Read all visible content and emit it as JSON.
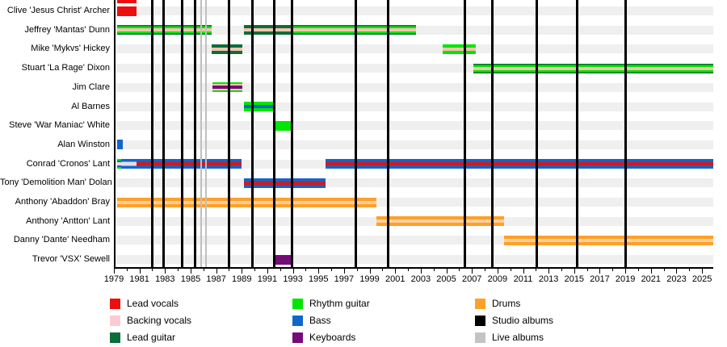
{
  "chart_data": {
    "type": "timeline",
    "x_axis": {
      "start": 1979,
      "end": 2025.75,
      "tick_years": [
        1979,
        1981,
        1983,
        1985,
        1987,
        1989,
        1991,
        1993,
        1995,
        1997,
        1999,
        2001,
        2003,
        2005,
        2007,
        2009,
        2011,
        2013,
        2015,
        2017,
        2019,
        2021,
        2023,
        2025
      ],
      "minor_tick_step": 1,
      "grid": "row-stripes"
    },
    "colors": {
      "red": "#ed0f0f",
      "vocal_red": "#c81d26",
      "pink": "#f5c3ae",
      "pink_legend": "#f9ccd3",
      "pale": "#e8dcea",
      "dark_green": "#0b6e38",
      "bright_green": "#00e600",
      "blue": "#1166cc",
      "purple": "#760c78",
      "orange": "#ffa028",
      "peach": "#ffcf9c",
      "black": "#000000",
      "silver": "#c4c4c4",
      "row_band": "#efefef",
      "live_line": "#bfbfbf"
    },
    "members": [
      {
        "name": "Clive 'Jesus Christ' Archer",
        "bars": [
          {
            "from": 1979.1,
            "to": 1980.65,
            "roles": [
              "Lead vocals"
            ],
            "stripes": [
              [
                "red",
                100
              ]
            ]
          }
        ]
      },
      {
        "name": "Jeffrey 'Mantas' Dunn",
        "bars": [
          {
            "from": 1979.1,
            "to": 1986.5,
            "roles": [
              "Lead guitar",
              "Rhythm guitar",
              "Backing vocals"
            ],
            "stripes": [
              [
                "dark_green",
                14
              ],
              [
                "bright_green",
                20
              ],
              [
                "pink",
                32
              ],
              [
                "bright_green",
                20
              ],
              [
                "dark_green",
                14
              ]
            ]
          },
          {
            "from": 1989.05,
            "to": 1992.85,
            "roles": [
              "Lead guitar",
              "Backing vocals"
            ],
            "stripes": [
              [
                "dark_green",
                35
              ],
              [
                "pink",
                30
              ],
              [
                "dark_green",
                35
              ]
            ]
          },
          {
            "from": 1992.85,
            "to": 2002.5,
            "roles": [
              "Lead guitar",
              "Rhythm guitar",
              "Backing vocals"
            ],
            "stripes": [
              [
                "dark_green",
                14
              ],
              [
                "bright_green",
                20
              ],
              [
                "pink",
                32
              ],
              [
                "bright_green",
                20
              ],
              [
                "dark_green",
                14
              ]
            ]
          }
        ]
      },
      {
        "name": "Mike 'Mykvs' Hickey",
        "bars": [
          {
            "from": 1986.5,
            "to": 1988.95,
            "roles": [
              "Lead guitar",
              "Backing vocals"
            ],
            "stripes": [
              [
                "dark_green",
                35
              ],
              [
                "pink",
                30
              ],
              [
                "dark_green",
                35
              ]
            ]
          },
          {
            "from": 2004.6,
            "to": 2007.2,
            "roles": [
              "Rhythm guitar",
              "Backing vocals"
            ],
            "stripes": [
              [
                "bright_green",
                35
              ],
              [
                "pink",
                30
              ],
              [
                "bright_green",
                35
              ]
            ]
          }
        ]
      },
      {
        "name": "Stuart 'La Rage' Dixon",
        "bars": [
          {
            "from": 2007.0,
            "to": 2025.75,
            "roles": [
              "Lead guitar",
              "Rhythm guitar",
              "Backing vocals"
            ],
            "stripes": [
              [
                "dark_green",
                14
              ],
              [
                "bright_green",
                20
              ],
              [
                "pink",
                32
              ],
              [
                "bright_green",
                20
              ],
              [
                "dark_green",
                14
              ]
            ]
          }
        ]
      },
      {
        "name": "Jim Clare",
        "bars": [
          {
            "from": 1986.55,
            "to": 1988.95,
            "roles": [
              "Rhythm guitar",
              "Backing vocals",
              "Keyboards"
            ],
            "stripes": [
              [
                "bright_green",
                17
              ],
              [
                "pink",
                17
              ],
              [
                "purple",
                32
              ],
              [
                "pink",
                17
              ],
              [
                "bright_green",
                17
              ]
            ]
          }
        ]
      },
      {
        "name": "Al Barnes",
        "bars": [
          {
            "from": 1989.05,
            "to": 1991.4,
            "roles": [
              "Rhythm guitar",
              "Bass"
            ],
            "stripes": [
              [
                "bright_green",
                33
              ],
              [
                "blue",
                34
              ],
              [
                "bright_green",
                33
              ]
            ]
          }
        ]
      },
      {
        "name": "Steve 'War Maniac' White",
        "bars": [
          {
            "from": 1991.5,
            "to": 1992.8,
            "roles": [
              "Rhythm guitar"
            ],
            "stripes": [
              [
                "bright_green",
                100
              ]
            ]
          }
        ]
      },
      {
        "name": "Alan Winston",
        "bars": [
          {
            "from": 1979.1,
            "to": 1979.6,
            "roles": [
              "Bass"
            ],
            "stripes": [
              [
                "blue",
                100
              ]
            ]
          }
        ]
      },
      {
        "name": "Conrad 'Cronos' Lant",
        "bars": [
          {
            "from": 1979.1,
            "to": 1979.45,
            "roles": [
              "Rhythm guitar",
              "Bass",
              "Backing vocals"
            ],
            "stripes": [
              [
                "bright_green",
                15
              ],
              [
                "blue",
                18
              ],
              [
                "pale",
                34
              ],
              [
                "blue",
                18
              ],
              [
                "bright_green",
                15
              ]
            ]
          },
          {
            "from": 1979.45,
            "to": 1980.65,
            "roles": [
              "Bass",
              "Backing vocals"
            ],
            "stripes": [
              [
                "blue",
                30
              ],
              [
                "pale",
                40
              ],
              [
                "blue",
                30
              ]
            ]
          },
          {
            "from": 1980.65,
            "to": 1988.85,
            "roles": [
              "Bass",
              "Lead vocals"
            ],
            "stripes": [
              [
                "blue",
                30
              ],
              [
                "vocal_red",
                40
              ],
              [
                "blue",
                30
              ]
            ]
          },
          {
            "from": 1995.4,
            "to": 2025.75,
            "roles": [
              "Bass",
              "Lead vocals"
            ],
            "stripes": [
              [
                "blue",
                30
              ],
              [
                "vocal_red",
                40
              ],
              [
                "blue",
                30
              ]
            ]
          }
        ]
      },
      {
        "name": "Tony 'Demolition Man' Dolan",
        "bars": [
          {
            "from": 1989.05,
            "to": 1995.4,
            "roles": [
              "Bass",
              "Lead vocals"
            ],
            "stripes": [
              [
                "blue",
                30
              ],
              [
                "vocal_red",
                40
              ],
              [
                "blue",
                30
              ]
            ]
          }
        ]
      },
      {
        "name": "Anthony 'Abaddon' Bray",
        "bars": [
          {
            "from": 1979.1,
            "to": 1999.4,
            "roles": [
              "Drums",
              "Backing vocals"
            ],
            "stripes": [
              [
                "orange",
                32
              ],
              [
                "peach",
                36
              ],
              [
                "orange",
                32
              ]
            ]
          }
        ]
      },
      {
        "name": "Anthony 'Antton' Lant",
        "bars": [
          {
            "from": 1999.4,
            "to": 2009.4,
            "roles": [
              "Drums",
              "Backing vocals"
            ],
            "stripes": [
              [
                "orange",
                32
              ],
              [
                "peach",
                36
              ],
              [
                "orange",
                32
              ]
            ]
          }
        ]
      },
      {
        "name": "Danny 'Dante' Needham",
        "bars": [
          {
            "from": 2009.4,
            "to": 2025.75,
            "roles": [
              "Drums",
              "Backing vocals"
            ],
            "stripes": [
              [
                "orange",
                32
              ],
              [
                "peach",
                36
              ],
              [
                "orange",
                32
              ]
            ]
          }
        ]
      },
      {
        "name": "Trevor 'VSX' Sewell",
        "bars": [
          {
            "from": 1991.4,
            "to": 1992.9,
            "roles": [
              "Keyboards"
            ],
            "stripes": [
              [
                "purple",
                100
              ]
            ]
          }
        ]
      }
    ],
    "events": {
      "studio_albums": [
        1981.9,
        1982.75,
        1984.2,
        1985.25,
        1987.85,
        1989.7,
        1991.4,
        1992.8,
        1997.8,
        2000.3,
        2006.3,
        2008.5,
        2011.95,
        2015.1,
        2018.9
      ],
      "live_albums": [
        1985.7,
        1986.1
      ]
    },
    "top_clipped_bar": {
      "from": 1979.1,
      "to": 1980.65,
      "color": "red"
    },
    "legend": {
      "columns": [
        [
          {
            "label": "Lead vocals",
            "color": "red"
          },
          {
            "label": "Backing vocals",
            "color": "pink_legend"
          },
          {
            "label": "Lead guitar",
            "color": "dark_green"
          }
        ],
        [
          {
            "label": "Rhythm guitar",
            "color": "bright_green"
          },
          {
            "label": "Bass",
            "color": "blue"
          },
          {
            "label": "Keyboards",
            "color": "purple"
          }
        ],
        [
          {
            "label": "Drums",
            "color": "orange"
          },
          {
            "label": "Studio albums",
            "color": "black"
          },
          {
            "label": "Live albums",
            "color": "silver"
          }
        ]
      ]
    }
  }
}
